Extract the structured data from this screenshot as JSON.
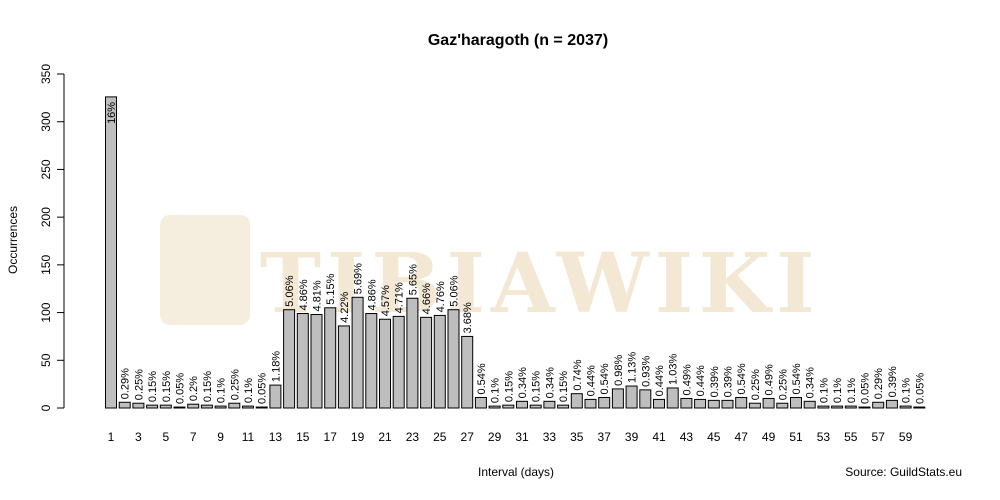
{
  "chart_data": {
    "type": "bar",
    "title": "Gaz'haragoth (n = 2037)",
    "xlabel": "Interval (days)",
    "ylabel": "Occurrences",
    "source": "Source: GuildStats.eu",
    "watermark": "TIBIAWIKI",
    "ylim": [
      0,
      350
    ],
    "yticks": [
      0,
      50,
      100,
      150,
      200,
      250,
      300,
      350
    ],
    "categories": [
      1,
      2,
      3,
      4,
      5,
      6,
      7,
      8,
      9,
      10,
      11,
      12,
      13,
      14,
      15,
      16,
      17,
      18,
      19,
      20,
      21,
      22,
      23,
      24,
      25,
      26,
      27,
      28,
      29,
      30,
      31,
      32,
      33,
      34,
      35,
      36,
      37,
      38,
      39,
      40,
      41,
      42,
      43,
      44,
      45,
      46,
      47,
      48,
      49,
      50,
      51,
      52,
      53,
      54,
      55,
      56,
      57,
      58,
      59,
      60
    ],
    "x_tick_labels": [
      "1",
      "3",
      "5",
      "7",
      "9",
      "11",
      "13",
      "15",
      "17",
      "19",
      "21",
      "23",
      "25",
      "27",
      "29",
      "31",
      "33",
      "35",
      "37",
      "39",
      "41",
      "43",
      "45",
      "47",
      "49",
      "51",
      "53",
      "55",
      "57",
      "59"
    ],
    "values": [
      326,
      6,
      5,
      3,
      3,
      1,
      4,
      3,
      2,
      5,
      2,
      1,
      24,
      103,
      99,
      98,
      105,
      86,
      116,
      99,
      93,
      96,
      115,
      95,
      97,
      103,
      75,
      11,
      2,
      3,
      7,
      3,
      7,
      3,
      15,
      9,
      11,
      20,
      23,
      19,
      9,
      21,
      10,
      9,
      8,
      8,
      11,
      5,
      10,
      5,
      11,
      7,
      2,
      2,
      2,
      1,
      6,
      8,
      2,
      1
    ],
    "labels": [
      "16%",
      "0.29%",
      "0.25%",
      "0.15%",
      "0.15%",
      "0.05%",
      "0.2%",
      "0.15%",
      "0.1%",
      "0.25%",
      "0.1%",
      "0.05%",
      "1.18%",
      "5.06%",
      "4.86%",
      "4.81%",
      "5.15%",
      "4.22%",
      "5.69%",
      "4.86%",
      "4.57%",
      "4.71%",
      "5.65%",
      "4.66%",
      "4.76%",
      "5.06%",
      "3.68%",
      "0.54%",
      "0.1%",
      "0.15%",
      "0.34%",
      "0.15%",
      "0.34%",
      "0.15%",
      "0.74%",
      "0.44%",
      "0.54%",
      "0.98%",
      "1.13%",
      "0.93%",
      "0.44%",
      "1.03%",
      "0.49%",
      "0.44%",
      "0.39%",
      "0.39%",
      "0.54%",
      "0.25%",
      "0.49%",
      "0.25%",
      "0.54%",
      "0.34%",
      "0.1%",
      "0.1%",
      "0.1%",
      "0.05%",
      "0.29%",
      "0.39%",
      "0.1%",
      "0.05%"
    ],
    "colors": {
      "bar_fill": "#bebebe",
      "bar_stroke": "#000000"
    },
    "grid": false,
    "legend": "none"
  }
}
